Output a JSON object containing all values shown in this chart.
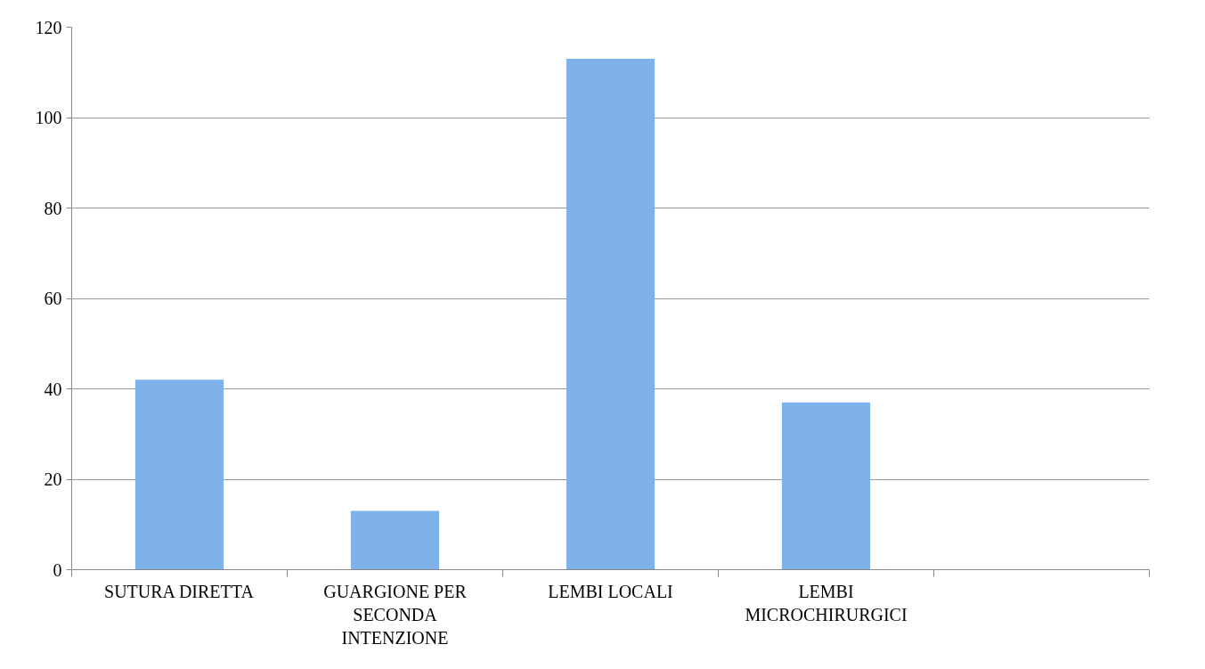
{
  "chart_data": {
    "type": "bar",
    "categories": [
      "SUTURA DIRETTA",
      "GUARGIONE PER SECONDA INTENZIONE",
      "LEMBI LOCALI",
      "LEMBI MICROCHIRURGICI",
      null
    ],
    "values": [
      42,
      13,
      113,
      37,
      null
    ],
    "color": "#7fb1ea",
    "ylim": [
      0,
      120
    ],
    "yticks": [
      0,
      20,
      40,
      60,
      80,
      100,
      120
    ],
    "grid": "y"
  }
}
